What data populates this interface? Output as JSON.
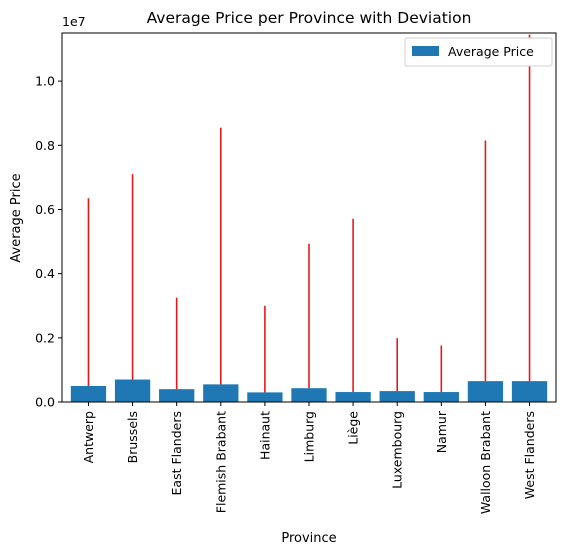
{
  "chart_data": {
    "type": "bar",
    "title": "Average Price per Province with Deviation",
    "xlabel": "Province",
    "ylabel": "Average Price",
    "y_scale_label": "1e7",
    "y_multiplier": 10000000,
    "categories": [
      "Antwerp",
      "Brussels",
      "East Flanders",
      "Flemish Brabant",
      "Hainaut",
      "Limburg",
      "Liège",
      "Luxembourg",
      "Namur",
      "Walloon Brabant",
      "West Flanders"
    ],
    "series": [
      {
        "name": "Average Price",
        "values": [
          500000,
          700000,
          400000,
          550000,
          300000,
          430000,
          310000,
          340000,
          310000,
          650000,
          650000
        ],
        "color": "#1f77b4"
      }
    ],
    "error_bars": {
      "color": "#e31a1c",
      "lower": [
        0,
        0,
        0,
        0,
        0,
        0,
        0,
        0,
        0,
        0,
        0
      ],
      "upper": [
        5850000,
        6400000,
        2850000,
        8000000,
        2700000,
        4500000,
        5400000,
        1650000,
        1450000,
        7500000,
        10800000
      ]
    },
    "ylim": [
      0,
      11500000
    ],
    "yticks": [
      0,
      2000000,
      4000000,
      6000000,
      8000000,
      10000000
    ],
    "ytick_labels": [
      "0.0",
      "0.2",
      "0.4",
      "0.6",
      "0.8",
      "1.0"
    ],
    "legend": {
      "position": "top-right",
      "entries": [
        "Average Price"
      ]
    },
    "grid": false
  }
}
